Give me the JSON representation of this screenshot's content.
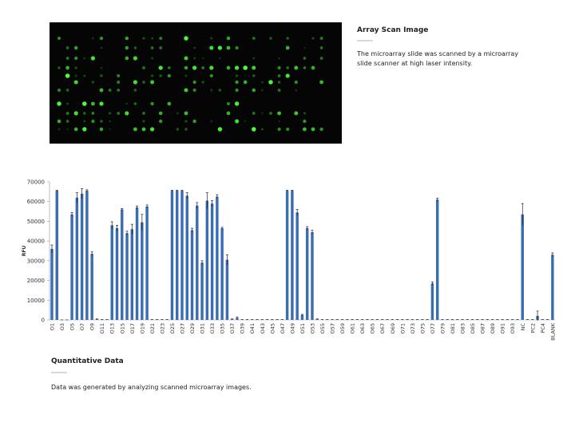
{
  "scan": {
    "title": "Array Scan Image",
    "description": "The microarray slide was scanned by a microarray slide scanner at high laser intensity."
  },
  "chart_data": {
    "type": "bar",
    "ylabel": "RFU",
    "color": "#3b6db3",
    "error_color": "#222222",
    "categories": [
      "O1",
      null,
      "O3",
      null,
      "O5",
      null,
      "O7",
      null,
      "O9",
      null,
      "O11",
      null,
      "O13",
      null,
      "O15",
      null,
      "O17",
      null,
      "O19",
      null,
      "O21",
      null,
      "O23",
      null,
      "O25",
      null,
      "O27",
      null,
      "O29",
      null,
      "O31",
      null,
      "O33",
      null,
      "O35",
      null,
      "O37",
      null,
      "O39",
      null,
      "O41",
      null,
      "O43",
      null,
      "O45",
      null,
      "O47",
      null,
      "O49",
      null,
      "O51",
      null,
      "O53",
      null,
      "O55",
      null,
      "O57",
      null,
      "O59",
      null,
      "O61",
      null,
      "O63",
      null,
      "O65",
      null,
      "O67",
      null,
      "O69",
      null,
      "O71",
      null,
      "O73",
      null,
      "O75",
      null,
      "O77",
      null,
      "O79",
      null,
      "O81",
      null,
      "O83",
      null,
      "O85",
      null,
      "O87",
      null,
      "O89",
      null,
      "O91",
      null,
      "O93",
      null,
      "NC",
      null,
      "PC2",
      null,
      "PC4",
      null,
      "BLANK"
    ],
    "values": [
      36000,
      65500,
      0,
      0,
      53500,
      62000,
      64000,
      65500,
      33500,
      500,
      200,
      200,
      48000,
      46500,
      56000,
      44000,
      46000,
      57000,
      49500,
      57500,
      200,
      200,
      200,
      200,
      65500,
      65500,
      65500,
      63000,
      45500,
      58000,
      29000,
      60500,
      59000,
      62500,
      46500,
      30500,
      500,
      1000,
      200,
      200,
      200,
      200,
      200,
      200,
      200,
      200,
      200,
      65500,
      65500,
      54500,
      2500,
      46500,
      44500,
      500,
      200,
      200,
      200,
      200,
      200,
      200,
      200,
      200,
      200,
      200,
      200,
      200,
      200,
      200,
      200,
      200,
      200,
      200,
      200,
      200,
      200,
      200,
      18500,
      61000,
      200,
      200,
      200,
      200,
      200,
      200,
      200,
      200,
      200,
      200,
      200,
      200,
      200,
      200,
      200,
      200,
      53500,
      200,
      200,
      2000,
      200,
      200,
      33000
    ],
    "errors": [
      2000,
      300,
      0,
      0,
      1000,
      2500,
      2500,
      500,
      1000,
      0,
      0,
      0,
      1800,
      1500,
      500,
      1000,
      2500,
      800,
      4000,
      800,
      0,
      0,
      0,
      0,
      300,
      300,
      300,
      1500,
      1000,
      1500,
      1000,
      4000,
      1500,
      1000,
      500,
      2500,
      0,
      500,
      0,
      0,
      0,
      0,
      0,
      0,
      0,
      0,
      0,
      300,
      300,
      1500,
      300,
      800,
      1000,
      0,
      0,
      0,
      0,
      0,
      0,
      0,
      0,
      0,
      0,
      0,
      0,
      0,
      0,
      0,
      0,
      0,
      0,
      0,
      0,
      0,
      0,
      0,
      800,
      800,
      0,
      0,
      0,
      0,
      0,
      0,
      0,
      0,
      0,
      0,
      0,
      0,
      0,
      0,
      0,
      0,
      5500,
      0,
      0,
      2500,
      0,
      0,
      1000
    ],
    "ylim": [
      0,
      70000
    ],
    "yticks": [
      0,
      10000,
      20000,
      30000,
      40000,
      50000,
      60000,
      70000
    ]
  },
  "quantitative": {
    "title": "Quantitative Data",
    "description": "Data was generated by analyzing scanned microarray images."
  }
}
